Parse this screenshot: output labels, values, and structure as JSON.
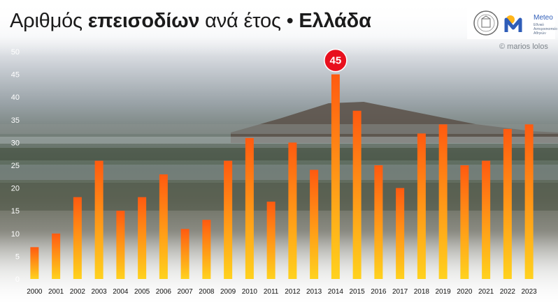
{
  "header": {
    "title_part1": "Αριθμός ",
    "title_bold1": "επεισοδίων",
    "title_part2": " ανά έτος • ",
    "title_bold2": "Ελλάδα"
  },
  "logo": {
    "meteo_name": "Meteo",
    "meteo_sub": "Εθνικό Αστεροσκοπείο Αθηνών"
  },
  "credit": "© marios lolos",
  "colors": {
    "bar_top": "#ff5a10",
    "bar_bottom": "#ffd21e",
    "badge": "#e8101e"
  },
  "chart_data": {
    "type": "bar",
    "title": "Αριθμός επεισοδίων ανά έτος • Ελλάδα",
    "categories": [
      "2000",
      "2001",
      "2002",
      "2003",
      "2004",
      "2005",
      "2006",
      "2007",
      "2008",
      "2009",
      "2010",
      "2011",
      "2012",
      "2013",
      "2014",
      "2015",
      "2016",
      "2017",
      "2018",
      "2019",
      "2020",
      "2021",
      "2022",
      "2023"
    ],
    "values": [
      7,
      10,
      18,
      26,
      15,
      18,
      23,
      11,
      13,
      26,
      31,
      17,
      30,
      24,
      45,
      37,
      25,
      20,
      32,
      34,
      25,
      26,
      33,
      34
    ],
    "ylim": [
      0,
      50
    ],
    "yticks": [
      0,
      5,
      10,
      15,
      20,
      25,
      30,
      35,
      40,
      45,
      50
    ],
    "highlight": {
      "category": "2014",
      "label": "45"
    },
    "grid": false,
    "legend": "none",
    "xlabel": "",
    "ylabel": ""
  }
}
